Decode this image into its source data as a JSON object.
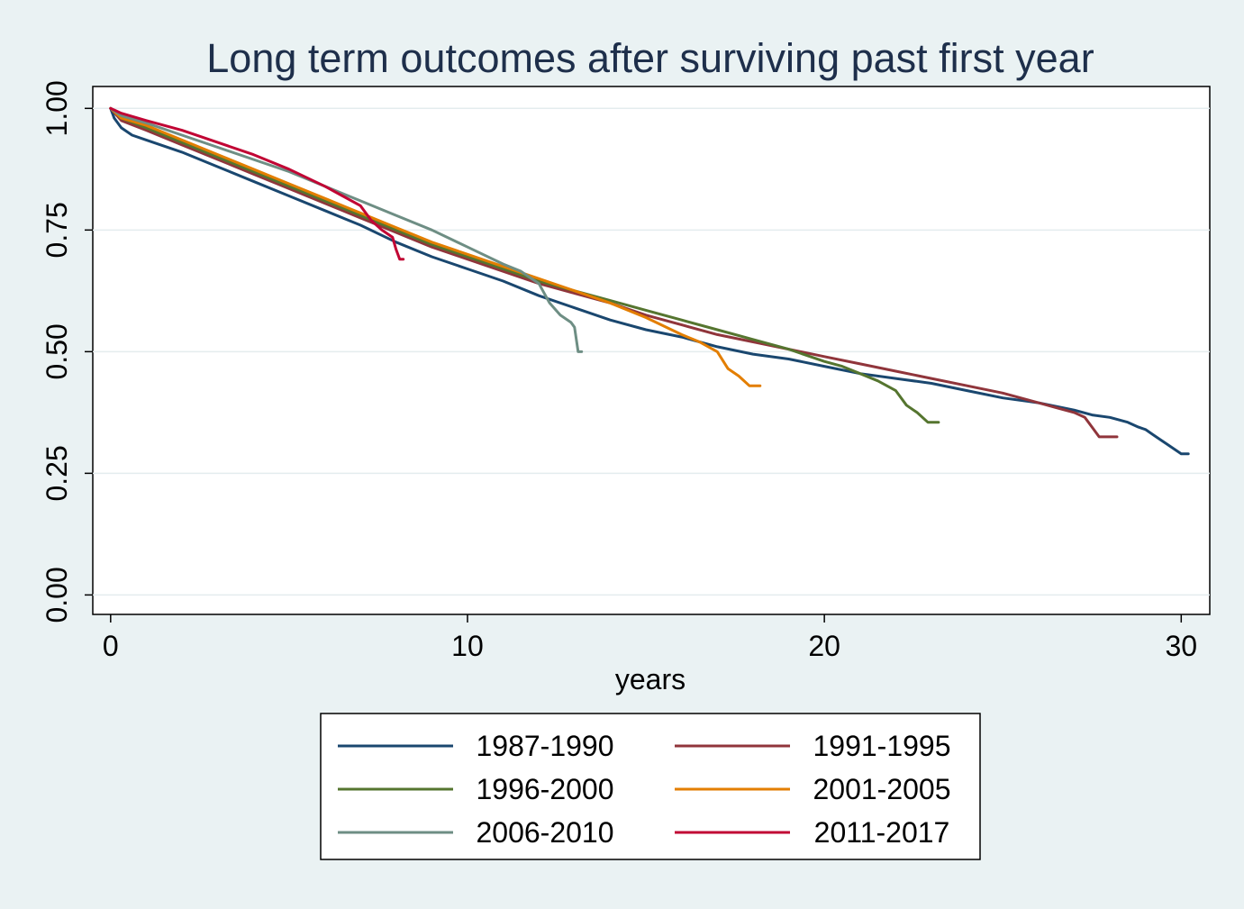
{
  "chart_data": {
    "type": "line",
    "title": "Long term outcomes after surviving past first year",
    "xlabel": "years",
    "ylabel": "",
    "xlim": [
      -0.5,
      30.8
    ],
    "ylim": [
      -0.04,
      1.045
    ],
    "xticks": [
      0,
      10,
      20,
      30
    ],
    "xtick_labels": [
      "0",
      "10",
      "20",
      "30"
    ],
    "yticks": [
      0,
      0.25,
      0.5,
      0.75,
      1.0
    ],
    "ytick_labels": [
      "0.00",
      "0.25",
      "0.50",
      "0.75",
      "1.00"
    ],
    "grid": true,
    "legend": {
      "position": "bottom",
      "columns": 2
    },
    "colors": {
      "plot_background": "#ffffff",
      "page_background": "#eaf2f3",
      "gridline": "#e4ecee",
      "title": "#1e2f4b"
    },
    "series": [
      {
        "name": "1987-1990",
        "color": "#1a476f",
        "x": [
          0,
          0.1,
          0.3,
          0.6,
          1,
          2,
          3,
          4,
          5,
          6,
          7,
          8,
          9,
          10,
          11,
          12,
          13,
          14,
          15,
          16,
          17,
          18,
          19,
          20,
          21,
          22,
          23,
          24,
          25,
          26,
          27,
          27.5,
          28,
          28.5,
          28.8,
          29.0,
          29.2,
          29.4,
          29.6,
          29.8,
          30.0,
          30.2
        ],
        "y": [
          1.0,
          0.98,
          0.96,
          0.945,
          0.935,
          0.91,
          0.88,
          0.85,
          0.82,
          0.79,
          0.76,
          0.725,
          0.695,
          0.67,
          0.645,
          0.615,
          0.59,
          0.565,
          0.545,
          0.53,
          0.51,
          0.495,
          0.485,
          0.47,
          0.455,
          0.445,
          0.435,
          0.42,
          0.405,
          0.395,
          0.38,
          0.37,
          0.365,
          0.355,
          0.345,
          0.34,
          0.33,
          0.32,
          0.31,
          0.3,
          0.29,
          0.29
        ]
      },
      {
        "name": "1991-1995",
        "color": "#90353b",
        "x": [
          0,
          0.3,
          1,
          2,
          3,
          4,
          5,
          6,
          7,
          8,
          9,
          10,
          11,
          12,
          13,
          14,
          15,
          16,
          17,
          18,
          19,
          20,
          21,
          22,
          23,
          24,
          25,
          26,
          26.5,
          27,
          27.3,
          27.5,
          27.7,
          28.0,
          28.2
        ],
        "y": [
          1.0,
          0.975,
          0.955,
          0.925,
          0.895,
          0.865,
          0.835,
          0.805,
          0.775,
          0.745,
          0.715,
          0.69,
          0.665,
          0.64,
          0.62,
          0.6,
          0.575,
          0.555,
          0.535,
          0.52,
          0.505,
          0.49,
          0.475,
          0.46,
          0.445,
          0.43,
          0.415,
          0.395,
          0.385,
          0.375,
          0.365,
          0.345,
          0.325,
          0.325,
          0.325
        ]
      },
      {
        "name": "1996-2000",
        "color": "#55752f",
        "x": [
          0,
          0.3,
          1,
          2,
          3,
          4,
          5,
          6,
          7,
          8,
          9,
          10,
          11,
          12,
          13,
          14,
          15,
          16,
          17,
          18,
          19,
          20,
          20.5,
          21,
          21.5,
          22.0,
          22.3,
          22.6,
          22.9,
          23.2
        ],
        "y": [
          1.0,
          0.98,
          0.96,
          0.93,
          0.9,
          0.87,
          0.84,
          0.81,
          0.78,
          0.75,
          0.72,
          0.695,
          0.67,
          0.645,
          0.625,
          0.605,
          0.585,
          0.565,
          0.545,
          0.525,
          0.505,
          0.48,
          0.47,
          0.455,
          0.44,
          0.42,
          0.39,
          0.375,
          0.355,
          0.355
        ]
      },
      {
        "name": "2001-2005",
        "color": "#e37e00",
        "x": [
          0,
          0.3,
          1,
          2,
          3,
          4,
          5,
          6,
          7,
          8,
          9,
          10,
          11,
          12,
          13,
          14,
          15,
          16,
          16.5,
          17.0,
          17.3,
          17.6,
          17.9,
          18.2
        ],
        "y": [
          1.0,
          0.98,
          0.965,
          0.935,
          0.905,
          0.875,
          0.845,
          0.815,
          0.785,
          0.755,
          0.725,
          0.7,
          0.675,
          0.65,
          0.625,
          0.6,
          0.57,
          0.535,
          0.52,
          0.5,
          0.465,
          0.45,
          0.43,
          0.43
        ]
      },
      {
        "name": "2006-2010",
        "color": "#6e8e84",
        "x": [
          0,
          0.3,
          1,
          2,
          3,
          4,
          5,
          6,
          7,
          8,
          9,
          10,
          11,
          11.5,
          12,
          12.3,
          12.6,
          12.9,
          13.0,
          13.1,
          13.2
        ],
        "y": [
          1.0,
          0.985,
          0.97,
          0.945,
          0.92,
          0.895,
          0.87,
          0.84,
          0.81,
          0.78,
          0.75,
          0.715,
          0.68,
          0.665,
          0.64,
          0.6,
          0.575,
          0.56,
          0.55,
          0.5,
          0.5
        ]
      },
      {
        "name": "2011-2017",
        "color": "#c10534",
        "x": [
          0,
          0.3,
          1,
          2,
          3,
          4,
          5,
          6,
          6.5,
          7.0,
          7.3,
          7.6,
          7.9,
          8.0,
          8.1,
          8.2
        ],
        "y": [
          1.0,
          0.99,
          0.975,
          0.955,
          0.93,
          0.905,
          0.875,
          0.84,
          0.82,
          0.8,
          0.77,
          0.75,
          0.735,
          0.71,
          0.69,
          0.69
        ]
      }
    ]
  }
}
